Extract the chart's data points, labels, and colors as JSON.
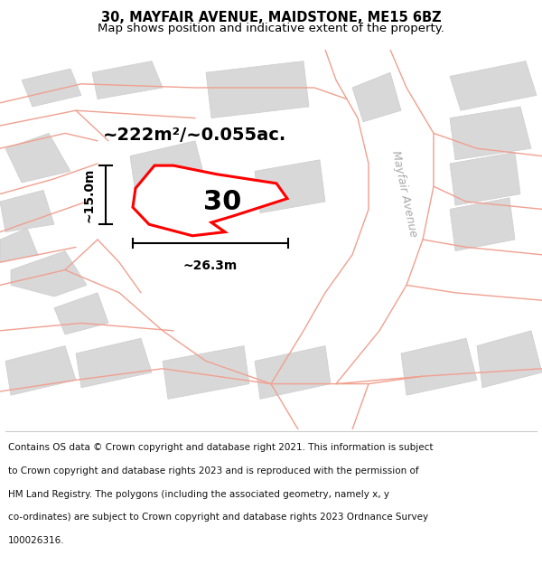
{
  "title": "30, MAYFAIR AVENUE, MAIDSTONE, ME15 6BZ",
  "subtitle": "Map shows position and indicative extent of the property.",
  "area_label": "~222m²/~0.055ac.",
  "plot_number": "30",
  "dim_width": "~26.3m",
  "dim_height": "~15.0m",
  "street_label": "Mayfair Avenue",
  "background_color": "#ffffff",
  "map_bg": "#ffffff",
  "block_fill": "#d8d8d8",
  "block_edge": "#cccccc",
  "road_line_color": "#f0a090",
  "plot_line_color": "#ff0000",
  "footer_lines": [
    "Contains OS data © Crown copyright and database right 2021. This information is subject",
    "to Crown copyright and database rights 2023 and is reproduced with the permission of",
    "HM Land Registry. The polygons (including the associated geometry, namely x, y",
    "co-ordinates) are subject to Crown copyright and database rights 2023 Ordnance Survey",
    "100026316."
  ],
  "title_fontsize": 10.5,
  "subtitle_fontsize": 9.5,
  "footer_fontsize": 7.5,
  "area_fontsize": 14,
  "plot_num_fontsize": 22,
  "dim_fontsize": 10
}
